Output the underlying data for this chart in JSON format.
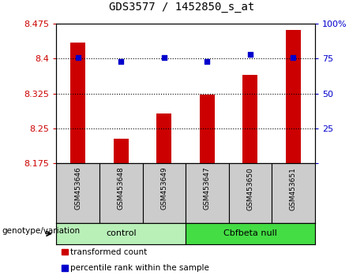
{
  "title": "GDS3577 / 1452850_s_at",
  "samples": [
    "GSM453646",
    "GSM453648",
    "GSM453649",
    "GSM453647",
    "GSM453650",
    "GSM453651"
  ],
  "transformed_counts": [
    8.435,
    8.228,
    8.282,
    8.322,
    8.365,
    8.462
  ],
  "percentile_ranks": [
    76,
    73,
    76,
    73,
    78,
    76
  ],
  "ymin": 8.175,
  "ymax": 8.475,
  "yticks": [
    8.175,
    8.25,
    8.325,
    8.4,
    8.475
  ],
  "y2min": 0,
  "y2max": 100,
  "y2ticks": [
    0,
    25,
    50,
    75,
    100
  ],
  "groups": [
    {
      "label": "control",
      "indices": [
        0,
        1,
        2
      ],
      "color": "#b8f0b8"
    },
    {
      "label": "Cbfbeta null",
      "indices": [
        3,
        4,
        5
      ],
      "color": "#44dd44"
    }
  ],
  "bar_color": "#cc0000",
  "dot_color": "#0000cc",
  "bar_width": 0.35,
  "bg_color": "#ffffff",
  "tick_label_color_left": "#cc0000",
  "tick_label_color_right": "#0000cc",
  "legend_items": [
    {
      "label": "transformed count",
      "color": "#cc0000"
    },
    {
      "label": "percentile rank within the sample",
      "color": "#0000cc"
    }
  ],
  "genotype_label": "genotype/variation",
  "sample_bg_color": "#cccccc"
}
